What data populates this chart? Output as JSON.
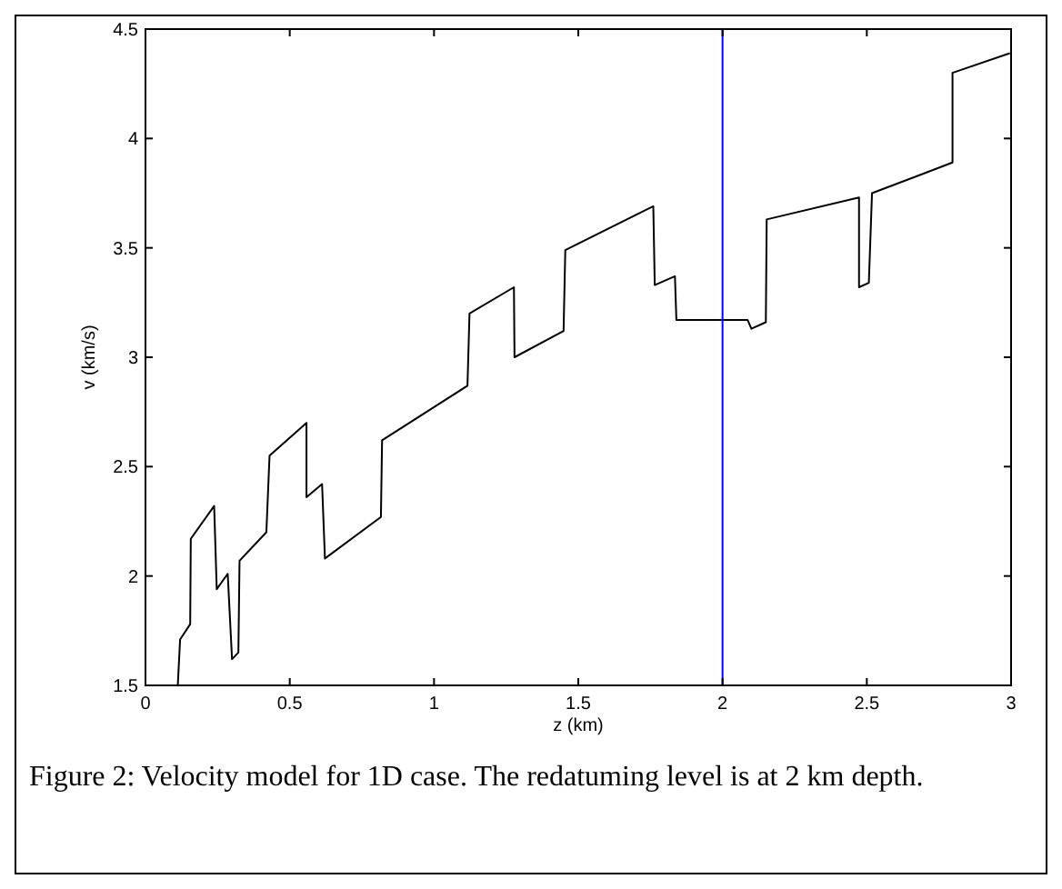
{
  "chart_data": {
    "type": "line",
    "xlabel": "z (km)",
    "ylabel": "v (km/s)",
    "annotations": [
      "Figure 2: Velocity model for 1D case. The redatuming level is at 2 km depth."
    ],
    "xlim": [
      0,
      3
    ],
    "ylim": [
      1.5,
      4.5
    ],
    "xticks": [
      0,
      0.5,
      1,
      1.5,
      2,
      2.5,
      3
    ],
    "yticks": [
      1.5,
      2,
      2.5,
      3,
      3.5,
      4,
      4.5
    ],
    "grid": false,
    "marker": "none",
    "line_style": "solid",
    "ref_lines": [
      {
        "axis": "x",
        "value": 2,
        "label": null,
        "color": "#0000ff"
      }
    ],
    "series": [
      {
        "color": "#000000",
        "x": [
          0.112,
          0.12,
          0.155,
          0.157,
          0.238,
          0.247,
          0.285,
          0.3,
          0.322,
          0.326,
          0.419,
          0.43,
          0.558,
          0.558,
          0.612,
          0.622,
          0.816,
          0.82,
          1.116,
          1.123,
          1.277,
          1.279,
          1.449,
          1.455,
          1.76,
          1.765,
          1.835,
          1.84,
          2.087,
          2.1,
          2.15,
          2.153,
          2.473,
          2.473,
          2.507,
          2.518,
          2.797,
          2.797,
          2.996
        ],
        "values": [
          1.5,
          1.71,
          1.78,
          2.17,
          2.32,
          1.94,
          2.01,
          1.62,
          1.65,
          2.07,
          2.2,
          2.55,
          2.7,
          2.36,
          2.42,
          2.08,
          2.27,
          2.62,
          2.87,
          3.2,
          3.32,
          3.0,
          3.12,
          3.49,
          3.69,
          3.33,
          3.37,
          3.17,
          3.17,
          3.13,
          3.16,
          3.63,
          3.73,
          3.32,
          3.34,
          3.75,
          3.89,
          4.3,
          4.39
        ]
      }
    ]
  }
}
